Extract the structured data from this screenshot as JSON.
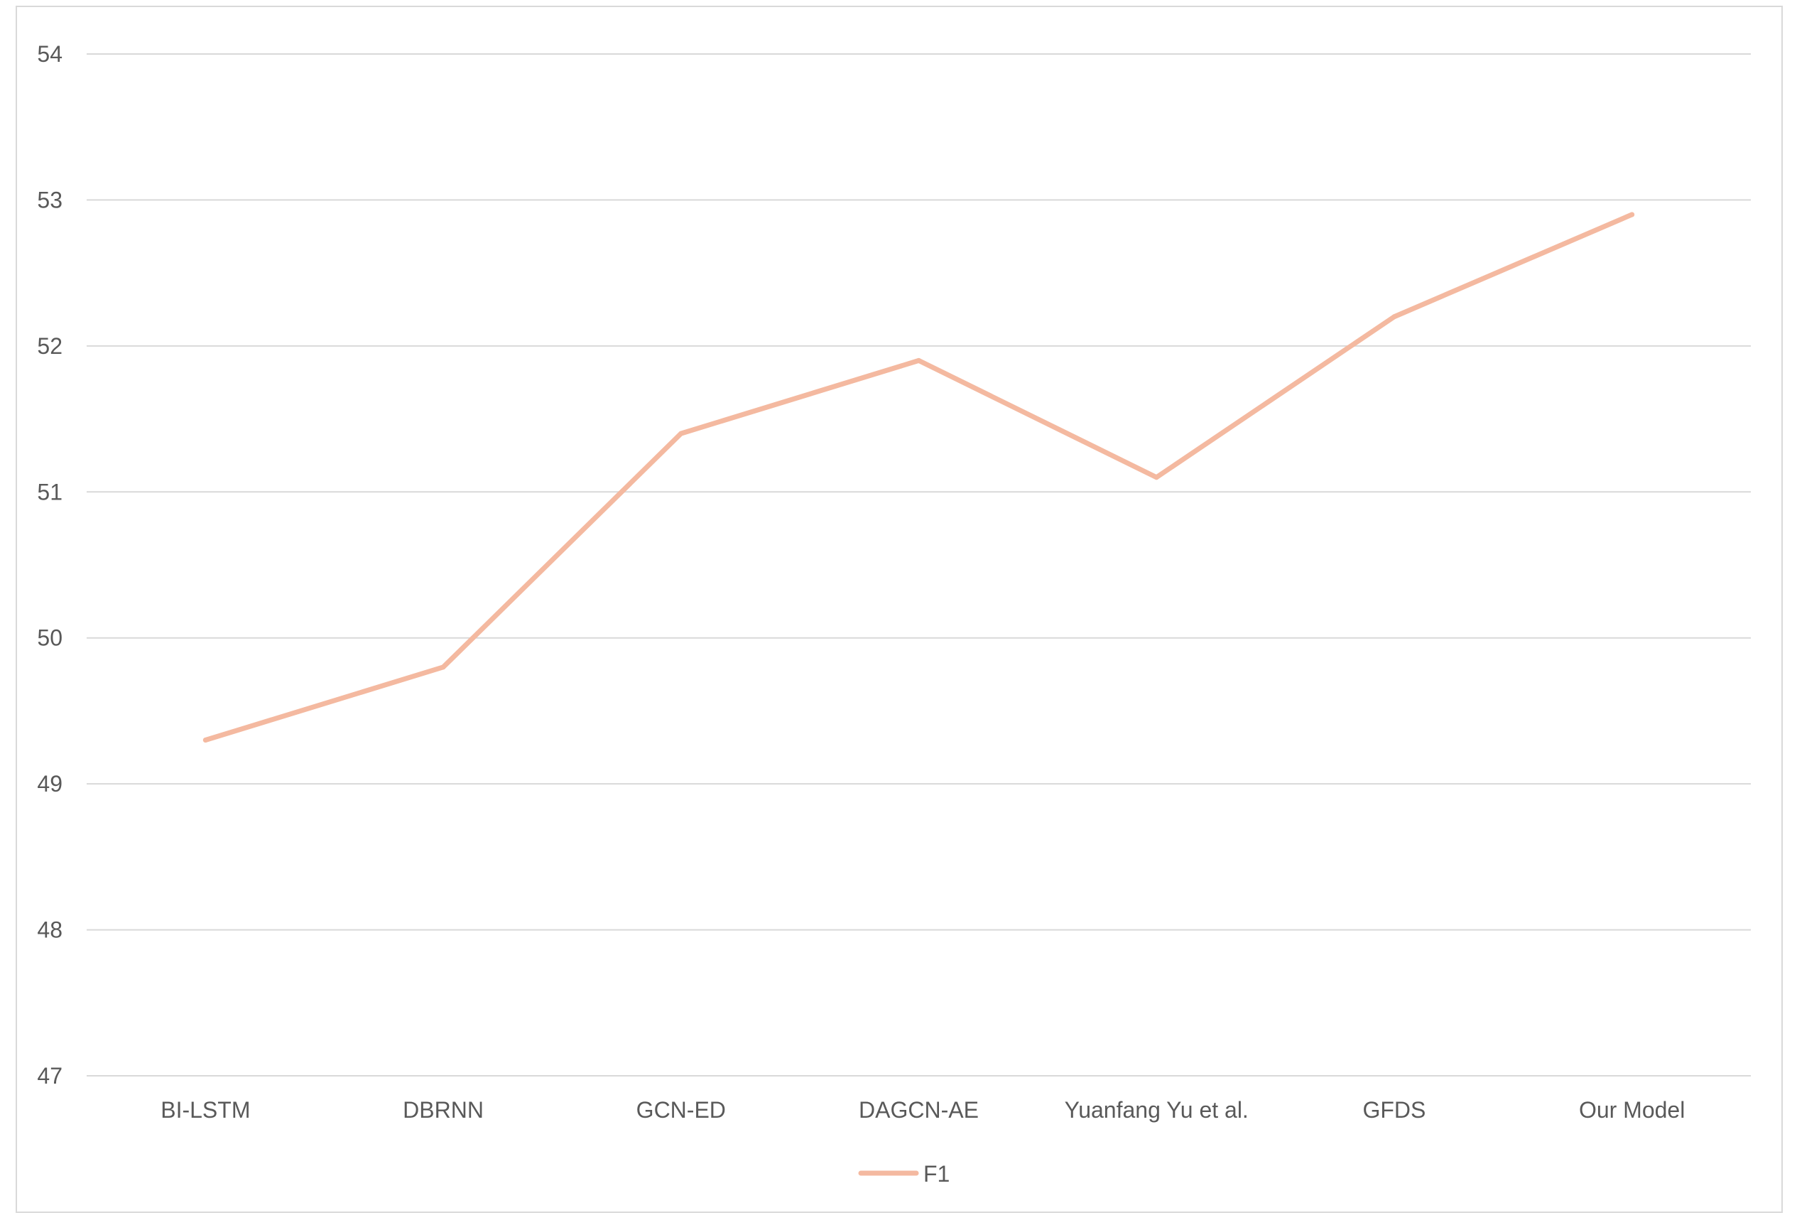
{
  "chart_data": {
    "type": "line",
    "title": "",
    "xlabel": "",
    "ylabel": "",
    "categories": [
      "BI-LSTM",
      "DBRNN",
      "GCN-ED",
      "DAGCN-AE",
      "Yuanfang Yu et al.",
      "GFDS",
      "Our Model"
    ],
    "series": [
      {
        "name": "F1",
        "values": [
          49.3,
          49.8,
          51.4,
          51.9,
          51.1,
          52.2,
          52.9
        ],
        "color": "#f4b9a0"
      }
    ],
    "ylim": [
      47,
      54
    ],
    "yticks": [
      47,
      48,
      49,
      50,
      51,
      52,
      53,
      54
    ],
    "grid": true,
    "legend": {
      "placement": "bottom",
      "entries": [
        "F1"
      ]
    },
    "gridline_color": "#d9d9d9",
    "text_color": "#595959"
  }
}
